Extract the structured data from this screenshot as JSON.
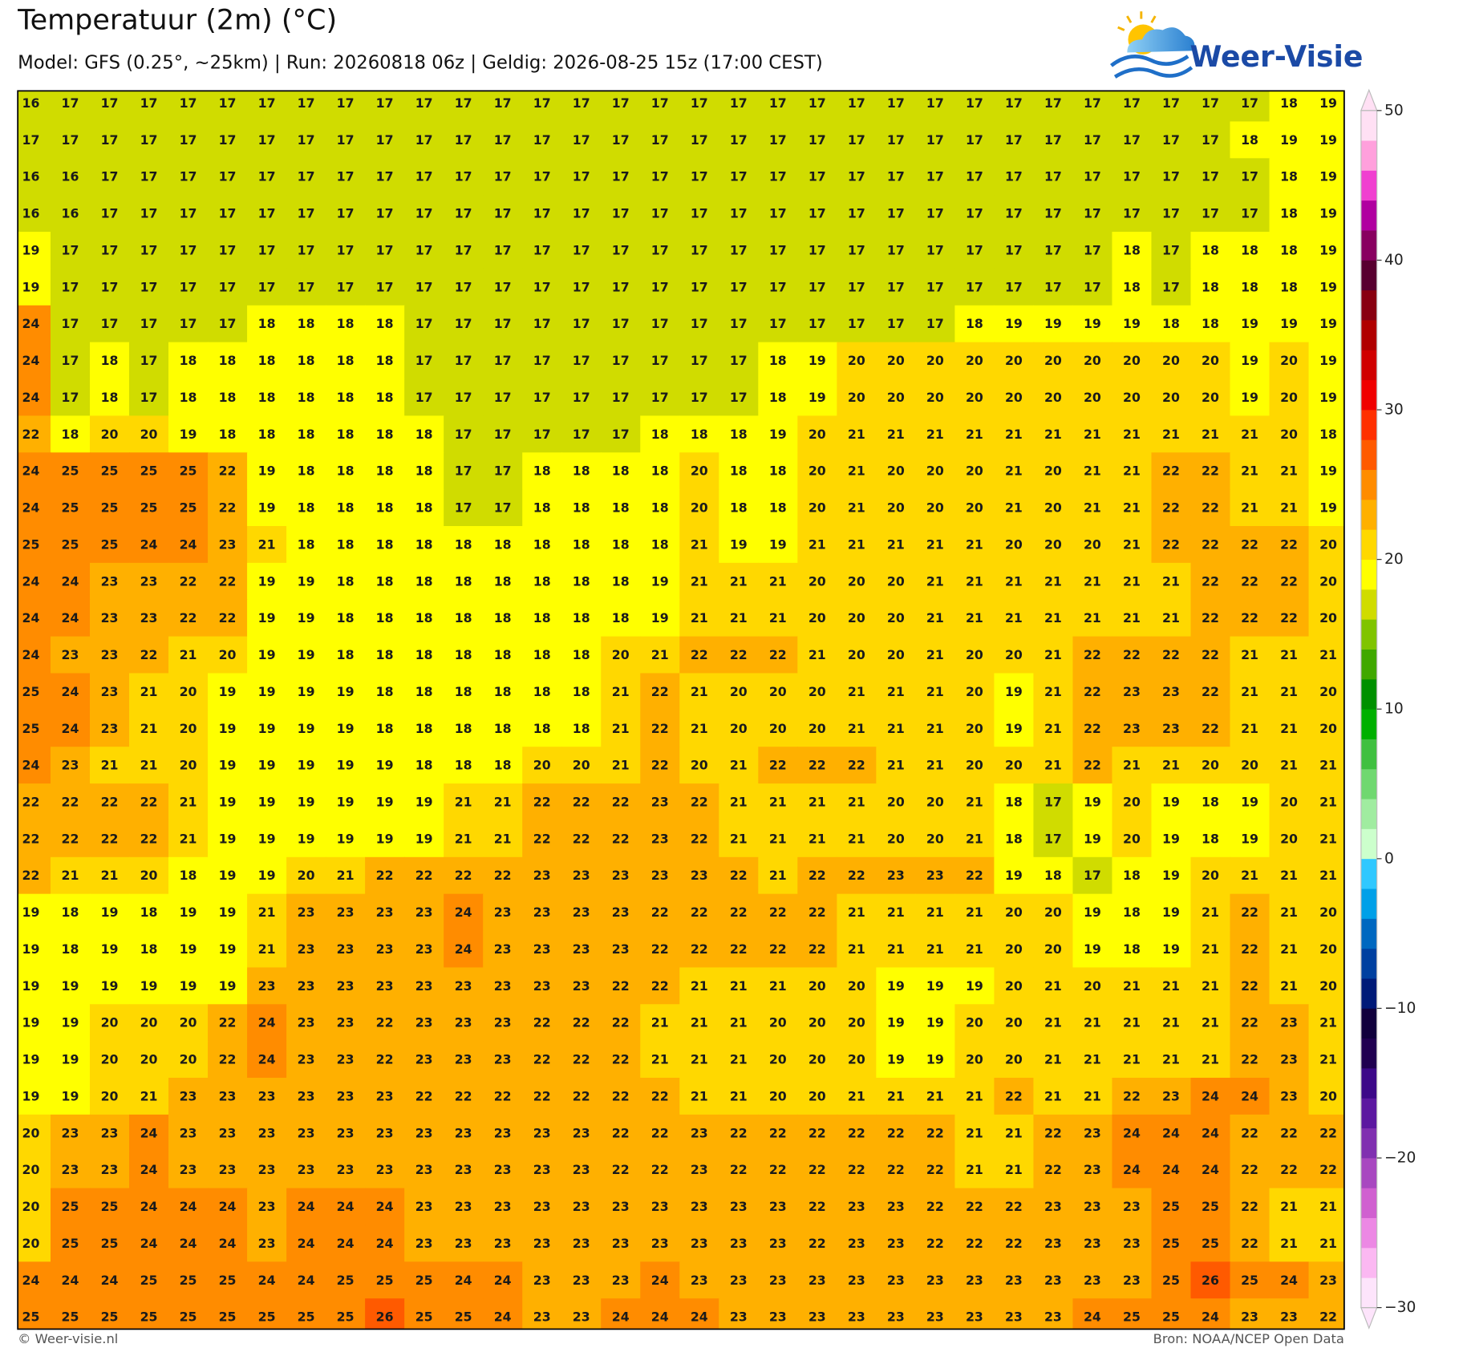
{
  "header": {
    "title": "Temperatuur (2m) (°C)",
    "subtitle": "Model: GFS (0.25°, ~25km)  |  Run: 20260818 06z  |  Geldig: 2026-08-25 15z (17:00 CEST)"
  },
  "logo": "Weer-Visie",
  "grid": {
    "rows": [
      [
        16,
        17,
        17,
        17,
        17,
        17,
        17,
        17,
        17,
        17,
        17,
        17,
        17,
        17,
        17,
        17,
        17,
        17,
        17,
        17,
        17,
        17,
        17,
        17,
        17,
        17,
        17,
        17,
        17,
        17,
        17,
        17,
        18,
        19
      ],
      [
        17,
        17,
        17,
        17,
        17,
        17,
        17,
        17,
        17,
        17,
        17,
        17,
        17,
        17,
        17,
        17,
        17,
        17,
        17,
        17,
        17,
        17,
        17,
        17,
        17,
        17,
        17,
        17,
        17,
        17,
        17,
        18,
        19,
        19
      ],
      [
        16,
        16,
        17,
        17,
        17,
        17,
        17,
        17,
        17,
        17,
        17,
        17,
        17,
        17,
        17,
        17,
        17,
        17,
        17,
        17,
        17,
        17,
        17,
        17,
        17,
        17,
        17,
        17,
        17,
        17,
        17,
        17,
        18,
        19
      ],
      [
        16,
        16,
        17,
        17,
        17,
        17,
        17,
        17,
        17,
        17,
        17,
        17,
        17,
        17,
        17,
        17,
        17,
        17,
        17,
        17,
        17,
        17,
        17,
        17,
        17,
        17,
        17,
        17,
        17,
        17,
        17,
        17,
        18,
        19
      ],
      [
        19,
        17,
        17,
        17,
        17,
        17,
        17,
        17,
        17,
        17,
        17,
        17,
        17,
        17,
        17,
        17,
        17,
        17,
        17,
        17,
        17,
        17,
        17,
        17,
        17,
        17,
        17,
        17,
        18,
        17,
        18,
        18,
        18,
        19
      ],
      [
        19,
        17,
        17,
        17,
        17,
        17,
        17,
        17,
        17,
        17,
        17,
        17,
        17,
        17,
        17,
        17,
        17,
        17,
        17,
        17,
        17,
        17,
        17,
        17,
        17,
        17,
        17,
        17,
        18,
        17,
        18,
        18,
        18,
        19
      ],
      [
        24,
        17,
        17,
        17,
        17,
        17,
        18,
        18,
        18,
        18,
        17,
        17,
        17,
        17,
        17,
        17,
        17,
        17,
        17,
        17,
        17,
        17,
        17,
        17,
        18,
        19,
        19,
        19,
        19,
        18,
        18,
        19,
        19,
        19
      ],
      [
        24,
        17,
        18,
        17,
        18,
        18,
        18,
        18,
        18,
        18,
        17,
        17,
        17,
        17,
        17,
        17,
        17,
        17,
        17,
        18,
        19,
        20,
        20,
        20,
        20,
        20,
        20,
        20,
        20,
        20,
        20,
        19,
        20,
        19
      ],
      [
        24,
        17,
        18,
        17,
        18,
        18,
        18,
        18,
        18,
        18,
        17,
        17,
        17,
        17,
        17,
        17,
        17,
        17,
        17,
        18,
        19,
        20,
        20,
        20,
        20,
        20,
        20,
        20,
        20,
        20,
        20,
        19,
        20,
        19
      ],
      [
        22,
        18,
        20,
        20,
        19,
        18,
        18,
        18,
        18,
        18,
        18,
        17,
        17,
        17,
        17,
        17,
        18,
        18,
        18,
        19,
        20,
        21,
        21,
        21,
        21,
        21,
        21,
        21,
        21,
        21,
        21,
        21,
        20,
        18
      ],
      [
        24,
        25,
        25,
        25,
        25,
        22,
        19,
        18,
        18,
        18,
        18,
        17,
        17,
        18,
        18,
        18,
        18,
        20,
        18,
        18,
        20,
        21,
        20,
        20,
        20,
        21,
        20,
        21,
        21,
        22,
        22,
        21,
        21,
        19
      ],
      [
        24,
        25,
        25,
        25,
        25,
        22,
        19,
        18,
        18,
        18,
        18,
        17,
        17,
        18,
        18,
        18,
        18,
        20,
        18,
        18,
        20,
        21,
        20,
        20,
        20,
        21,
        20,
        21,
        21,
        22,
        22,
        21,
        21,
        19
      ],
      [
        25,
        25,
        25,
        24,
        24,
        23,
        21,
        18,
        18,
        18,
        18,
        18,
        18,
        18,
        18,
        18,
        18,
        21,
        19,
        19,
        21,
        21,
        21,
        21,
        21,
        20,
        20,
        20,
        21,
        22,
        22,
        22,
        22,
        20
      ],
      [
        24,
        24,
        23,
        23,
        22,
        22,
        19,
        19,
        18,
        18,
        18,
        18,
        18,
        18,
        18,
        18,
        19,
        21,
        21,
        21,
        20,
        20,
        20,
        21,
        21,
        21,
        21,
        21,
        21,
        21,
        22,
        22,
        22,
        20
      ],
      [
        24,
        24,
        23,
        23,
        22,
        22,
        19,
        19,
        18,
        18,
        18,
        18,
        18,
        18,
        18,
        18,
        19,
        21,
        21,
        21,
        20,
        20,
        20,
        21,
        21,
        21,
        21,
        21,
        21,
        21,
        22,
        22,
        22,
        20
      ],
      [
        24,
        23,
        23,
        22,
        21,
        20,
        19,
        19,
        18,
        18,
        18,
        18,
        18,
        18,
        18,
        20,
        21,
        22,
        22,
        22,
        21,
        20,
        20,
        21,
        20,
        20,
        21,
        22,
        22,
        22,
        22,
        21,
        21,
        21
      ],
      [
        25,
        24,
        23,
        21,
        20,
        19,
        19,
        19,
        19,
        18,
        18,
        18,
        18,
        18,
        18,
        21,
        22,
        21,
        20,
        20,
        20,
        21,
        21,
        21,
        20,
        19,
        21,
        22,
        23,
        23,
        22,
        21,
        21,
        20
      ],
      [
        25,
        24,
        23,
        21,
        20,
        19,
        19,
        19,
        19,
        18,
        18,
        18,
        18,
        18,
        18,
        21,
        22,
        21,
        20,
        20,
        20,
        21,
        21,
        21,
        20,
        19,
        21,
        22,
        23,
        23,
        22,
        21,
        21,
        20
      ],
      [
        24,
        23,
        21,
        21,
        20,
        19,
        19,
        19,
        19,
        19,
        18,
        18,
        18,
        20,
        20,
        21,
        22,
        20,
        21,
        22,
        22,
        22,
        21,
        21,
        20,
        20,
        21,
        22,
        21,
        21,
        20,
        20,
        21,
        21
      ],
      [
        22,
        22,
        22,
        22,
        21,
        19,
        19,
        19,
        19,
        19,
        19,
        21,
        21,
        22,
        22,
        22,
        23,
        22,
        21,
        21,
        21,
        21,
        20,
        20,
        21,
        18,
        17,
        19,
        20,
        19,
        18,
        19,
        20,
        21
      ],
      [
        22,
        22,
        22,
        22,
        21,
        19,
        19,
        19,
        19,
        19,
        19,
        21,
        21,
        22,
        22,
        22,
        23,
        22,
        21,
        21,
        21,
        21,
        20,
        20,
        21,
        18,
        17,
        19,
        20,
        19,
        18,
        19,
        20,
        21
      ],
      [
        22,
        21,
        21,
        20,
        18,
        19,
        19,
        20,
        21,
        22,
        22,
        22,
        22,
        23,
        23,
        23,
        23,
        23,
        22,
        21,
        22,
        22,
        23,
        23,
        22,
        19,
        18,
        17,
        18,
        19,
        20,
        21,
        21,
        21
      ],
      [
        19,
        18,
        19,
        18,
        19,
        19,
        21,
        23,
        23,
        23,
        23,
        24,
        23,
        23,
        23,
        23,
        22,
        22,
        22,
        22,
        22,
        21,
        21,
        21,
        21,
        20,
        20,
        19,
        18,
        19,
        21,
        22,
        21,
        20
      ],
      [
        19,
        18,
        19,
        18,
        19,
        19,
        21,
        23,
        23,
        23,
        23,
        24,
        23,
        23,
        23,
        23,
        22,
        22,
        22,
        22,
        22,
        21,
        21,
        21,
        21,
        20,
        20,
        19,
        18,
        19,
        21,
        22,
        21,
        20
      ],
      [
        19,
        19,
        19,
        19,
        19,
        19,
        23,
        23,
        23,
        23,
        23,
        23,
        23,
        23,
        23,
        22,
        22,
        21,
        21,
        21,
        20,
        20,
        19,
        19,
        19,
        20,
        21,
        20,
        21,
        21,
        21,
        22,
        21,
        20
      ],
      [
        19,
        19,
        20,
        20,
        20,
        22,
        24,
        23,
        23,
        22,
        23,
        23,
        23,
        22,
        22,
        22,
        21,
        21,
        21,
        20,
        20,
        20,
        19,
        19,
        20,
        20,
        21,
        21,
        21,
        21,
        21,
        22,
        23,
        21
      ],
      [
        19,
        19,
        20,
        20,
        20,
        22,
        24,
        23,
        23,
        22,
        23,
        23,
        23,
        22,
        22,
        22,
        21,
        21,
        21,
        20,
        20,
        20,
        19,
        19,
        20,
        20,
        21,
        21,
        21,
        21,
        21,
        22,
        23,
        21
      ],
      [
        19,
        19,
        20,
        21,
        23,
        23,
        23,
        23,
        23,
        23,
        22,
        22,
        22,
        22,
        22,
        22,
        22,
        21,
        21,
        20,
        20,
        21,
        21,
        21,
        21,
        22,
        21,
        21,
        22,
        23,
        24,
        24,
        23,
        20
      ],
      [
        20,
        23,
        23,
        24,
        23,
        23,
        23,
        23,
        23,
        23,
        23,
        23,
        23,
        23,
        23,
        22,
        22,
        23,
        22,
        22,
        22,
        22,
        22,
        22,
        21,
        21,
        22,
        23,
        24,
        24,
        24,
        22,
        22,
        22
      ],
      [
        20,
        23,
        23,
        24,
        23,
        23,
        23,
        23,
        23,
        23,
        23,
        23,
        23,
        23,
        23,
        22,
        22,
        23,
        22,
        22,
        22,
        22,
        22,
        22,
        21,
        21,
        22,
        23,
        24,
        24,
        24,
        22,
        22,
        22
      ],
      [
        20,
        25,
        25,
        24,
        24,
        24,
        23,
        24,
        24,
        24,
        23,
        23,
        23,
        23,
        23,
        23,
        23,
        23,
        23,
        23,
        22,
        23,
        23,
        22,
        22,
        22,
        23,
        23,
        23,
        25,
        25,
        22,
        21,
        21
      ],
      [
        20,
        25,
        25,
        24,
        24,
        24,
        23,
        24,
        24,
        24,
        23,
        23,
        23,
        23,
        23,
        23,
        23,
        23,
        23,
        23,
        22,
        23,
        23,
        22,
        22,
        22,
        23,
        23,
        23,
        25,
        25,
        22,
        21,
        21
      ],
      [
        24,
        24,
        24,
        25,
        25,
        25,
        24,
        24,
        25,
        25,
        25,
        24,
        24,
        23,
        23,
        23,
        24,
        23,
        23,
        23,
        23,
        23,
        23,
        23,
        23,
        23,
        23,
        23,
        23,
        25,
        26,
        25,
        24,
        23
      ],
      [
        25,
        25,
        25,
        25,
        25,
        25,
        25,
        25,
        25,
        26,
        25,
        25,
        24,
        23,
        23,
        24,
        24,
        24,
        23,
        23,
        23,
        23,
        23,
        23,
        23,
        23,
        23,
        24,
        25,
        25,
        24,
        23,
        23,
        22
      ]
    ]
  },
  "colorbar": {
    "lim": [
      -30,
      50
    ],
    "ticks": [
      {
        "value": -30,
        "label": "−30"
      },
      {
        "value": -20,
        "label": "−20"
      },
      {
        "value": -10,
        "label": "−10"
      },
      0,
      10,
      20,
      30,
      40,
      50
    ],
    "colors": [
      "#fde4fb",
      "#fbb8f2",
      "#ec88e4",
      "#d060d0",
      "#a848c0",
      "#8030b0",
      "#5c18a0",
      "#3c0888",
      "#200050",
      "#10003c",
      "#001a78",
      "#0040a0",
      "#0068c0",
      "#00a0e8",
      "#30c8ff",
      "#ccffcc",
      "#a0eca0",
      "#70d870",
      "#40c040",
      "#00b000",
      "#009000",
      "#40a800",
      "#80c400",
      "#d0dc00",
      "#ffff00",
      "#ffd800",
      "#ffb000",
      "#ff8c00",
      "#ff5a00",
      "#ff3000",
      "#f00000",
      "#d00000",
      "#b00000",
      "#880010",
      "#580030",
      "#880060",
      "#b000a0",
      "#f040d0",
      "#ffa0dc",
      "#ffe0f4"
    ]
  },
  "footer": {
    "left": "© Weer-visie.nl",
    "right": "Bron: NOAA/NCEP Open Data"
  }
}
